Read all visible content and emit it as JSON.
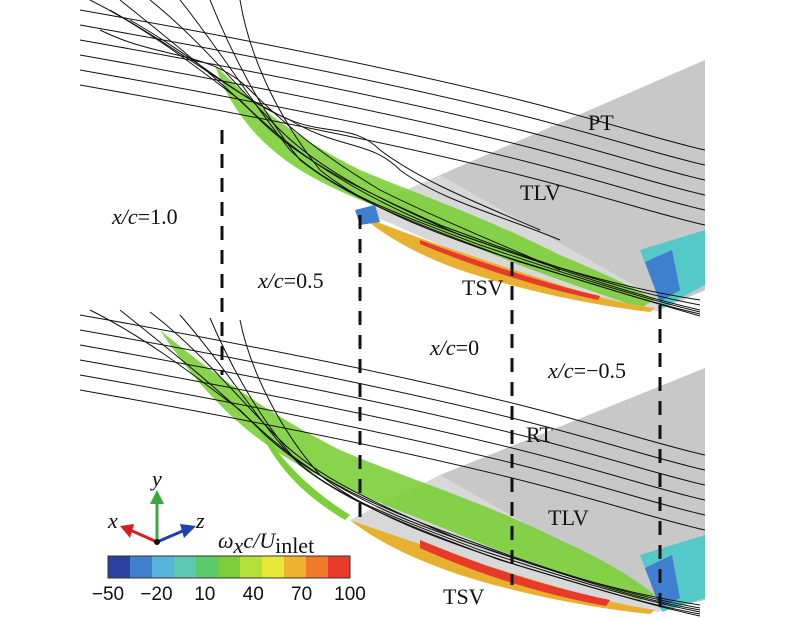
{
  "labels": {
    "pt": "PT",
    "rt": "RT",
    "tlv_top": "TLV",
    "tlv_bottom": "TLV",
    "tsv_top": "TSV",
    "tsv_bottom": "TSV"
  },
  "stations": [
    {
      "var": "x/c",
      "value": "=1.0"
    },
    {
      "var": "x/c",
      "value": "=0.5"
    },
    {
      "var": "x/c",
      "value": "=0"
    },
    {
      "var": "x/c",
      "value": "=−0.5"
    }
  ],
  "axes": {
    "x": "x",
    "y": "y",
    "z": "z",
    "colors": {
      "x": "#d62020",
      "y": "#3aa83a",
      "z": "#2040b0"
    }
  },
  "colorbar": {
    "title": {
      "var": "ω",
      "sub": "x",
      "mid": "c/U",
      "sub2": "inlet"
    },
    "ticks": [
      "−50",
      "−20",
      "10",
      "40",
      "70",
      "100"
    ],
    "colors": [
      "#2b3fa0",
      "#3f7fd0",
      "#55b4d8",
      "#5cc9b2",
      "#5cc96a",
      "#7ccf3a",
      "#b4e03c",
      "#e8e83a",
      "#f0b030",
      "#ee7a2a",
      "#e83a28"
    ]
  },
  "blade_colors": {
    "surface": "#c6c6c6",
    "core": "#7ccf3a",
    "hot": "#e83a28",
    "cold": "#3f7fd0",
    "cyan": "#55c8c8"
  }
}
